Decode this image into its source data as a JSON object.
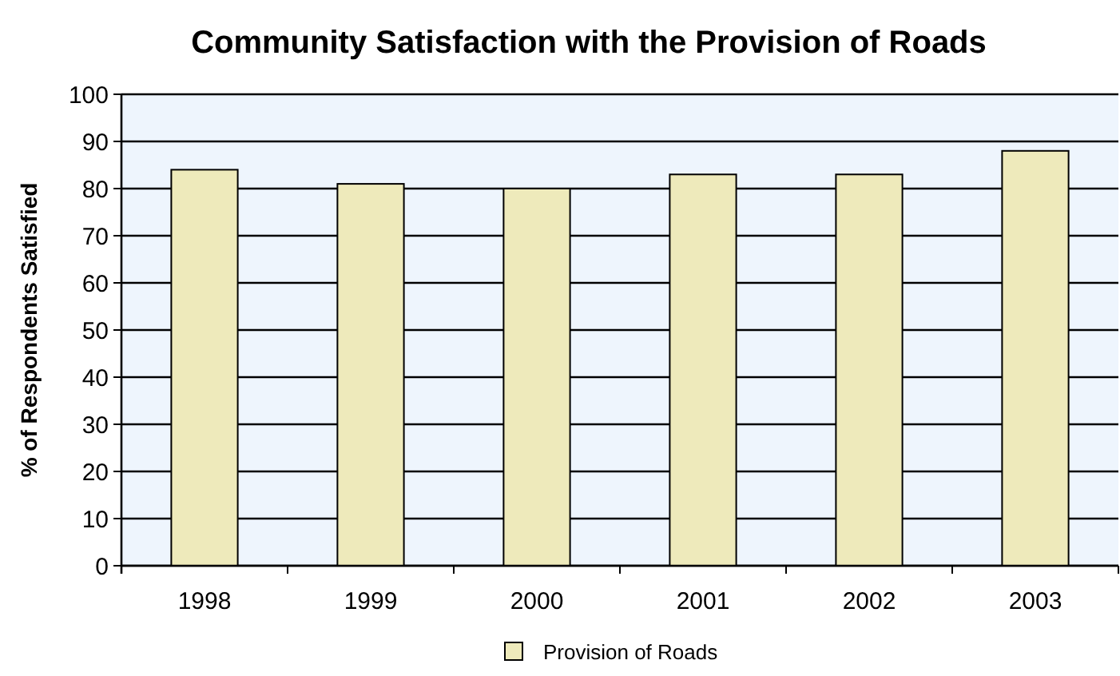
{
  "chart_data": {
    "type": "bar",
    "title": "Community Satisfaction with the Provision of Roads",
    "ylabel": "% of Respondents Satisfied",
    "categories": [
      "1998",
      "1999",
      "2000",
      "2001",
      "2002",
      "2003"
    ],
    "series": [
      {
        "name": "Provision of Roads",
        "color": "#eeeabb",
        "values": [
          84,
          81,
          80,
          83,
          83,
          88
        ]
      }
    ],
    "ylim": [
      0,
      100
    ],
    "yticks": [
      0,
      10,
      20,
      30,
      40,
      50,
      60,
      70,
      80,
      90,
      100
    ],
    "grid": "y",
    "legend": "bottom"
  }
}
